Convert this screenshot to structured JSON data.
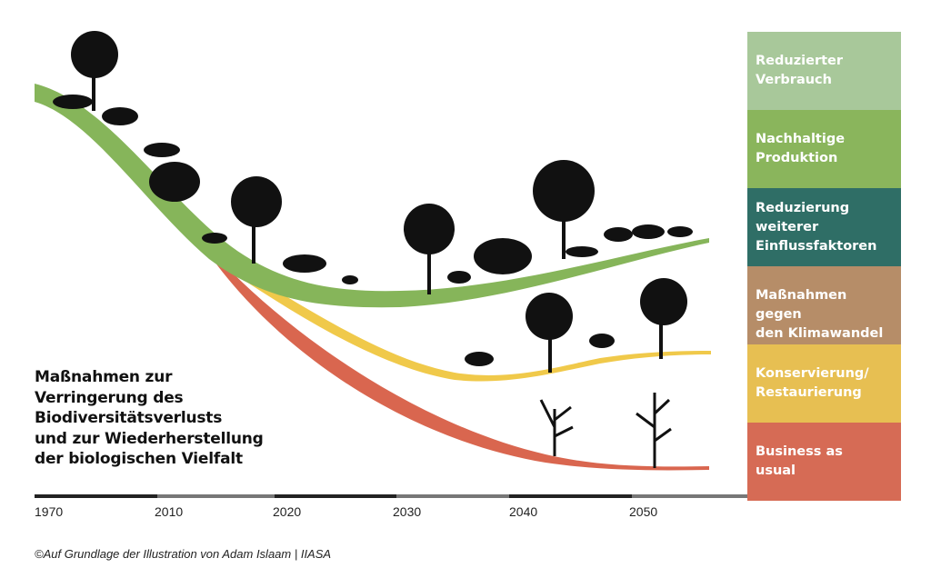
{
  "title": "Maßnahmen zur\nVerringerung des\nBiodiversitätsverlusts\nund zur Wiederherstellung\nder biologischen Vielfalt",
  "legend": [
    {
      "label": "Reduzierter\nVerbrauch",
      "color": "#a8c89a"
    },
    {
      "label": "Nachhaltige\nProduktion",
      "color": "#8ab55c"
    },
    {
      "label": "Reduzierung\nweiterer\nEinflussfaktoren",
      "color": "#2f6e66"
    },
    {
      "label": "Maßnahmen gegen\nden Klimawandel",
      "color": "#b68d68"
    },
    {
      "label": "Konservierung/\nRestaurierung",
      "color": "#e7bf52"
    },
    {
      "label": "Business as\nusual",
      "color": "#d66b55"
    }
  ],
  "timeline": [
    "1970",
    "2010",
    "2020",
    "2030",
    "2040",
    "2050"
  ],
  "curves": {
    "green": "#86b55a",
    "yellow": "#f0c94a",
    "red": "#d9664f"
  },
  "credit": "©Auf Grundlage der Illustration von Adam Islaam | IIASA"
}
